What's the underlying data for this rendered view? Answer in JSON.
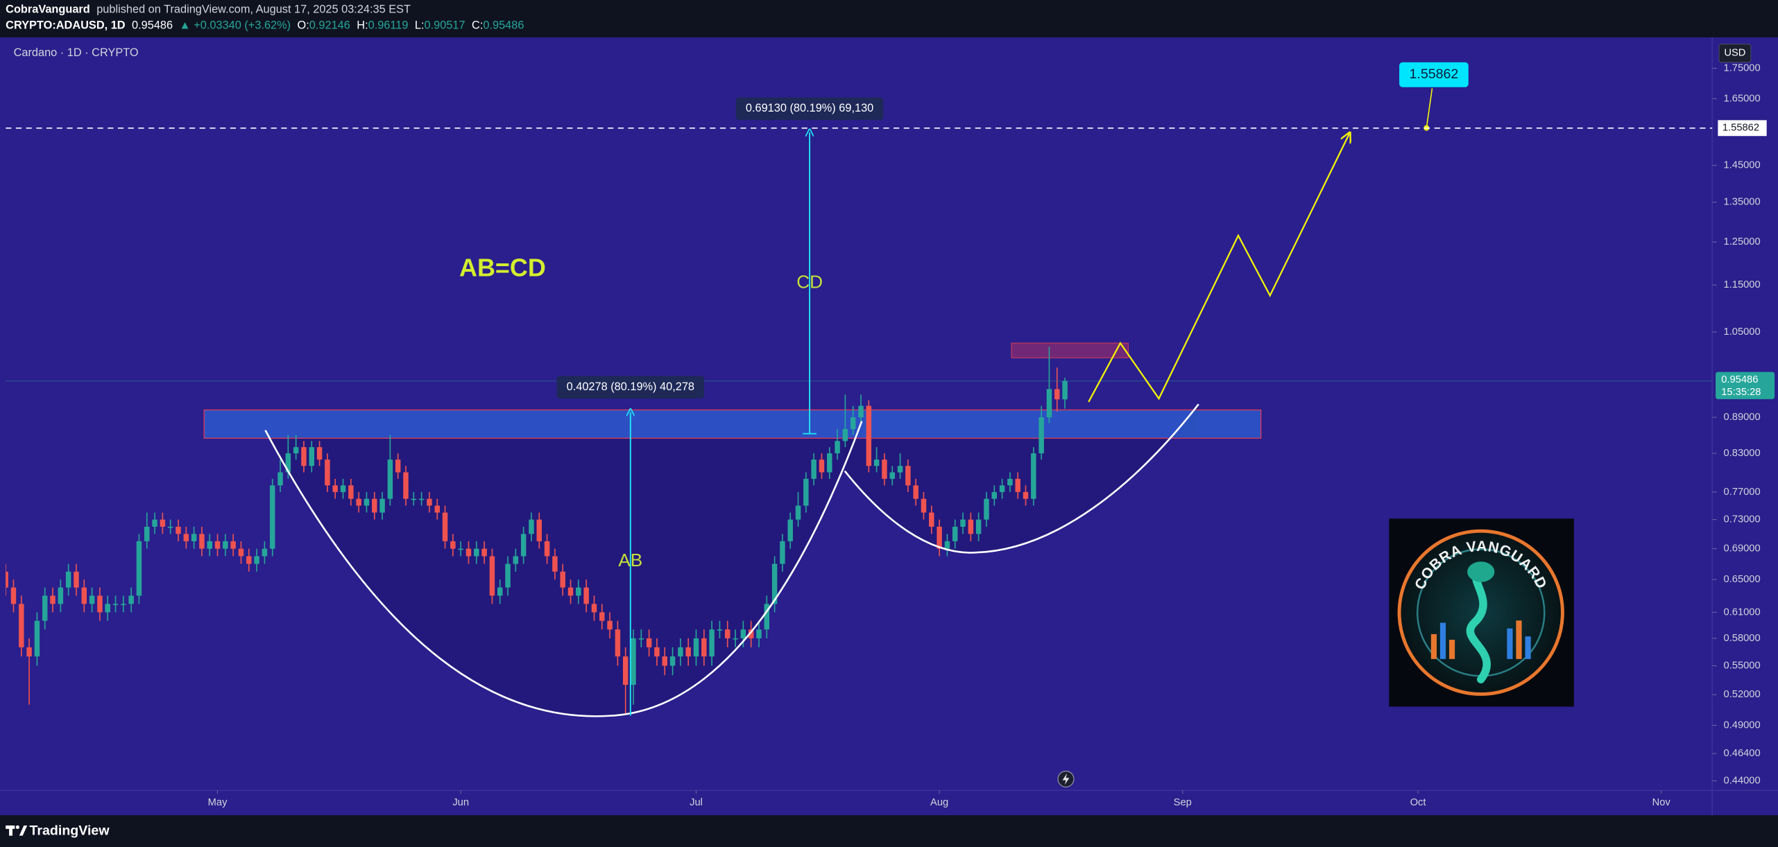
{
  "header": {
    "publisher": "CobraVanguard",
    "published_text": "published on TradingView.com, August 17, 2025 03:24:35 EST",
    "symbol": "CRYPTO:ADAUSD, 1D",
    "change": "▲ +0.03340 (+3.62%)",
    "o_label": "O:",
    "h_label": "H:",
    "l_label": "L:",
    "c_label": "C:"
  },
  "chart_data": {
    "type": "candlestick",
    "title": "Cardano · 1D · CRYPTO",
    "currency": "USD",
    "countdown": "15:35:28",
    "log_scale": true,
    "grid": false,
    "up_color": "#26a69a",
    "down_color": "#ef5350",
    "target": 1.55862,
    "annotations": {
      "pattern": "AB=CD",
      "ab": "AB",
      "cd": "CD",
      "ab_measure": "0.40278 (80.19%) 40,278",
      "cd_measure": "0.69130 (80.19%) 69,130"
    },
    "logo": "COBRA VANGUARD",
    "xlim": [
      0,
      217.5
    ],
    "xticks": [
      {
        "value": 27,
        "label": "May"
      },
      {
        "value": 58,
        "label": "Jun"
      },
      {
        "value": 88,
        "label": "Jul"
      },
      {
        "value": 119,
        "label": "Aug"
      },
      {
        "value": 150,
        "label": "Sep"
      },
      {
        "value": 180,
        "label": "Oct"
      },
      {
        "value": 211,
        "label": "Nov"
      }
    ],
    "ylim": [
      0.432,
      1.85
    ],
    "yticks": [
      {
        "value": 0.44,
        "label": "0.44000"
      },
      {
        "value": 0.464,
        "label": "0.46400"
      },
      {
        "value": 0.49,
        "label": "0.49000"
      },
      {
        "value": 0.52,
        "label": "0.52000"
      },
      {
        "value": 0.55,
        "label": "0.55000"
      },
      {
        "value": 0.58,
        "label": "0.58000"
      },
      {
        "value": 0.61,
        "label": "0.61000"
      },
      {
        "value": 0.65,
        "label": "0.65000"
      },
      {
        "value": 0.69,
        "label": "0.69000"
      },
      {
        "value": 0.73,
        "label": "0.73000"
      },
      {
        "value": 0.77,
        "label": "0.77000"
      },
      {
        "value": 0.83,
        "label": "0.83000"
      },
      {
        "value": 0.89,
        "label": "0.89000"
      },
      {
        "value": 1.05,
        "label": "1.05000"
      },
      {
        "value": 1.15,
        "label": "1.15000"
      },
      {
        "value": 1.25,
        "label": "1.25000"
      },
      {
        "value": 1.35,
        "label": "1.35000"
      },
      {
        "value": 1.45,
        "label": "1.45000"
      },
      {
        "value": 1.65,
        "label": "1.65000"
      },
      {
        "value": 1.75,
        "label": "1.75000"
      }
    ],
    "x": [
      0,
      1,
      2,
      3,
      4,
      5,
      6,
      7,
      8,
      9,
      10,
      11,
      12,
      13,
      14,
      15,
      16,
      17,
      18,
      19,
      20,
      21,
      22,
      23,
      24,
      25,
      26,
      27,
      28,
      29,
      30,
      31,
      32,
      33,
      34,
      35,
      36,
      37,
      38,
      39,
      40,
      41,
      42,
      43,
      44,
      45,
      46,
      47,
      48,
      49,
      50,
      51,
      52,
      53,
      54,
      55,
      56,
      57,
      58,
      59,
      60,
      61,
      62,
      63,
      64,
      65,
      66,
      67,
      68,
      69,
      70,
      71,
      72,
      73,
      74,
      75,
      76,
      77,
      78,
      79,
      80,
      81,
      82,
      83,
      84,
      85,
      86,
      87,
      88,
      89,
      90,
      91,
      92,
      93,
      94,
      95,
      96,
      97,
      98,
      99,
      100,
      101,
      102,
      103,
      104,
      105,
      106,
      107,
      108,
      109,
      110,
      111,
      112,
      113,
      114,
      115,
      116,
      117,
      118,
      119,
      120,
      121,
      122,
      123,
      124,
      125,
      126,
      127,
      128,
      129,
      130,
      131,
      132,
      133,
      134,
      135
    ],
    "open": [
      0.66,
      0.64,
      0.62,
      0.57,
      0.56,
      0.6,
      0.63,
      0.62,
      0.64,
      0.66,
      0.64,
      0.62,
      0.63,
      0.61,
      0.62,
      0.62,
      0.62,
      0.63,
      0.7,
      0.72,
      0.73,
      0.72,
      0.72,
      0.71,
      0.7,
      0.71,
      0.69,
      0.7,
      0.69,
      0.7,
      0.69,
      0.68,
      0.67,
      0.68,
      0.69,
      0.78,
      0.8,
      0.83,
      0.84,
      0.81,
      0.84,
      0.82,
      0.78,
      0.77,
      0.78,
      0.76,
      0.75,
      0.76,
      0.74,
      0.76,
      0.82,
      0.8,
      0.76,
      0.76,
      0.76,
      0.75,
      0.74,
      0.7,
      0.69,
      0.69,
      0.68,
      0.69,
      0.68,
      0.63,
      0.64,
      0.67,
      0.68,
      0.71,
      0.73,
      0.7,
      0.68,
      0.66,
      0.64,
      0.63,
      0.64,
      0.62,
      0.61,
      0.6,
      0.59,
      0.56,
      0.53,
      0.58,
      0.58,
      0.57,
      0.56,
      0.55,
      0.56,
      0.57,
      0.56,
      0.58,
      0.56,
      0.59,
      0.59,
      0.58,
      0.58,
      0.59,
      0.58,
      0.59,
      0.62,
      0.67,
      0.7,
      0.73,
      0.75,
      0.79,
      0.82,
      0.8,
      0.83,
      0.85,
      0.87,
      0.89,
      0.91,
      0.81,
      0.82,
      0.79,
      0.8,
      0.81,
      0.78,
      0.76,
      0.74,
      0.72,
      0.69,
      0.7,
      0.72,
      0.73,
      0.71,
      0.73,
      0.76,
      0.77,
      0.78,
      0.79,
      0.77,
      0.76,
      0.83,
      0.89,
      0.94,
      0.92146
    ],
    "high": [
      0.67,
      0.65,
      0.63,
      0.58,
      0.61,
      0.64,
      0.64,
      0.65,
      0.67,
      0.67,
      0.65,
      0.64,
      0.64,
      0.63,
      0.63,
      0.63,
      0.64,
      0.71,
      0.74,
      0.74,
      0.74,
      0.73,
      0.73,
      0.72,
      0.72,
      0.72,
      0.71,
      0.71,
      0.71,
      0.71,
      0.7,
      0.69,
      0.69,
      0.7,
      0.79,
      0.82,
      0.86,
      0.86,
      0.85,
      0.85,
      0.85,
      0.83,
      0.79,
      0.79,
      0.79,
      0.77,
      0.77,
      0.77,
      0.77,
      0.86,
      0.83,
      0.81,
      0.77,
      0.77,
      0.77,
      0.76,
      0.75,
      0.71,
      0.7,
      0.7,
      0.7,
      0.7,
      0.69,
      0.65,
      0.68,
      0.69,
      0.72,
      0.74,
      0.74,
      0.71,
      0.69,
      0.67,
      0.65,
      0.65,
      0.65,
      0.63,
      0.62,
      0.61,
      0.6,
      0.57,
      0.59,
      0.59,
      0.59,
      0.58,
      0.57,
      0.57,
      0.58,
      0.58,
      0.59,
      0.59,
      0.6,
      0.6,
      0.6,
      0.59,
      0.6,
      0.6,
      0.6,
      0.63,
      0.68,
      0.71,
      0.74,
      0.77,
      0.8,
      0.83,
      0.83,
      0.84,
      0.87,
      0.93,
      0.91,
      0.93,
      0.92,
      0.84,
      0.83,
      0.81,
      0.83,
      0.82,
      0.79,
      0.77,
      0.75,
      0.73,
      0.71,
      0.73,
      0.74,
      0.74,
      0.74,
      0.77,
      0.78,
      0.79,
      0.8,
      0.8,
      0.78,
      0.84,
      0.91,
      1.02,
      0.98,
      0.96119
    ],
    "low": [
      0.63,
      0.61,
      0.56,
      0.51,
      0.55,
      0.59,
      0.61,
      0.61,
      0.63,
      0.63,
      0.61,
      0.61,
      0.6,
      0.6,
      0.61,
      0.61,
      0.61,
      0.62,
      0.69,
      0.71,
      0.71,
      0.71,
      0.7,
      0.69,
      0.69,
      0.68,
      0.68,
      0.68,
      0.68,
      0.68,
      0.67,
      0.66,
      0.66,
      0.67,
      0.68,
      0.77,
      0.79,
      0.82,
      0.8,
      0.8,
      0.81,
      0.77,
      0.76,
      0.76,
      0.75,
      0.74,
      0.74,
      0.73,
      0.73,
      0.75,
      0.79,
      0.75,
      0.75,
      0.75,
      0.74,
      0.73,
      0.69,
      0.68,
      0.68,
      0.67,
      0.67,
      0.67,
      0.62,
      0.62,
      0.63,
      0.66,
      0.67,
      0.7,
      0.69,
      0.67,
      0.65,
      0.63,
      0.62,
      0.62,
      0.61,
      0.6,
      0.59,
      0.58,
      0.55,
      0.5,
      0.51,
      0.57,
      0.56,
      0.55,
      0.54,
      0.54,
      0.55,
      0.55,
      0.55,
      0.55,
      0.55,
      0.58,
      0.57,
      0.57,
      0.57,
      0.57,
      0.57,
      0.58,
      0.61,
      0.66,
      0.69,
      0.72,
      0.74,
      0.78,
      0.79,
      0.79,
      0.82,
      0.84,
      0.86,
      0.88,
      0.8,
      0.8,
      0.78,
      0.78,
      0.79,
      0.77,
      0.75,
      0.73,
      0.71,
      0.68,
      0.68,
      0.69,
      0.71,
      0.7,
      0.7,
      0.72,
      0.75,
      0.76,
      0.77,
      0.76,
      0.75,
      0.75,
      0.82,
      0.88,
      0.9,
      0.90517
    ],
    "close": [
      0.64,
      0.62,
      0.57,
      0.56,
      0.6,
      0.63,
      0.62,
      0.64,
      0.66,
      0.64,
      0.62,
      0.63,
      0.61,
      0.62,
      0.62,
      0.62,
      0.63,
      0.7,
      0.72,
      0.73,
      0.72,
      0.72,
      0.71,
      0.7,
      0.71,
      0.69,
      0.7,
      0.69,
      0.7,
      0.69,
      0.68,
      0.67,
      0.68,
      0.69,
      0.78,
      0.8,
      0.83,
      0.84,
      0.81,
      0.84,
      0.82,
      0.78,
      0.77,
      0.78,
      0.76,
      0.75,
      0.76,
      0.74,
      0.76,
      0.82,
      0.8,
      0.76,
      0.76,
      0.76,
      0.75,
      0.74,
      0.7,
      0.69,
      0.69,
      0.68,
      0.69,
      0.68,
      0.63,
      0.64,
      0.67,
      0.68,
      0.71,
      0.73,
      0.7,
      0.68,
      0.66,
      0.64,
      0.63,
      0.64,
      0.62,
      0.61,
      0.6,
      0.59,
      0.56,
      0.53,
      0.58,
      0.58,
      0.57,
      0.56,
      0.55,
      0.56,
      0.57,
      0.56,
      0.58,
      0.56,
      0.59,
      0.59,
      0.58,
      0.58,
      0.59,
      0.58,
      0.59,
      0.62,
      0.67,
      0.7,
      0.73,
      0.75,
      0.79,
      0.82,
      0.8,
      0.83,
      0.85,
      0.87,
      0.89,
      0.91,
      0.81,
      0.82,
      0.79,
      0.8,
      0.81,
      0.78,
      0.76,
      0.74,
      0.72,
      0.69,
      0.7,
      0.72,
      0.73,
      0.71,
      0.73,
      0.76,
      0.77,
      0.78,
      0.79,
      0.77,
      0.76,
      0.83,
      0.89,
      0.94,
      0.92146,
      0.95486
    ]
  },
  "footer": {
    "brand": "TradingView"
  }
}
